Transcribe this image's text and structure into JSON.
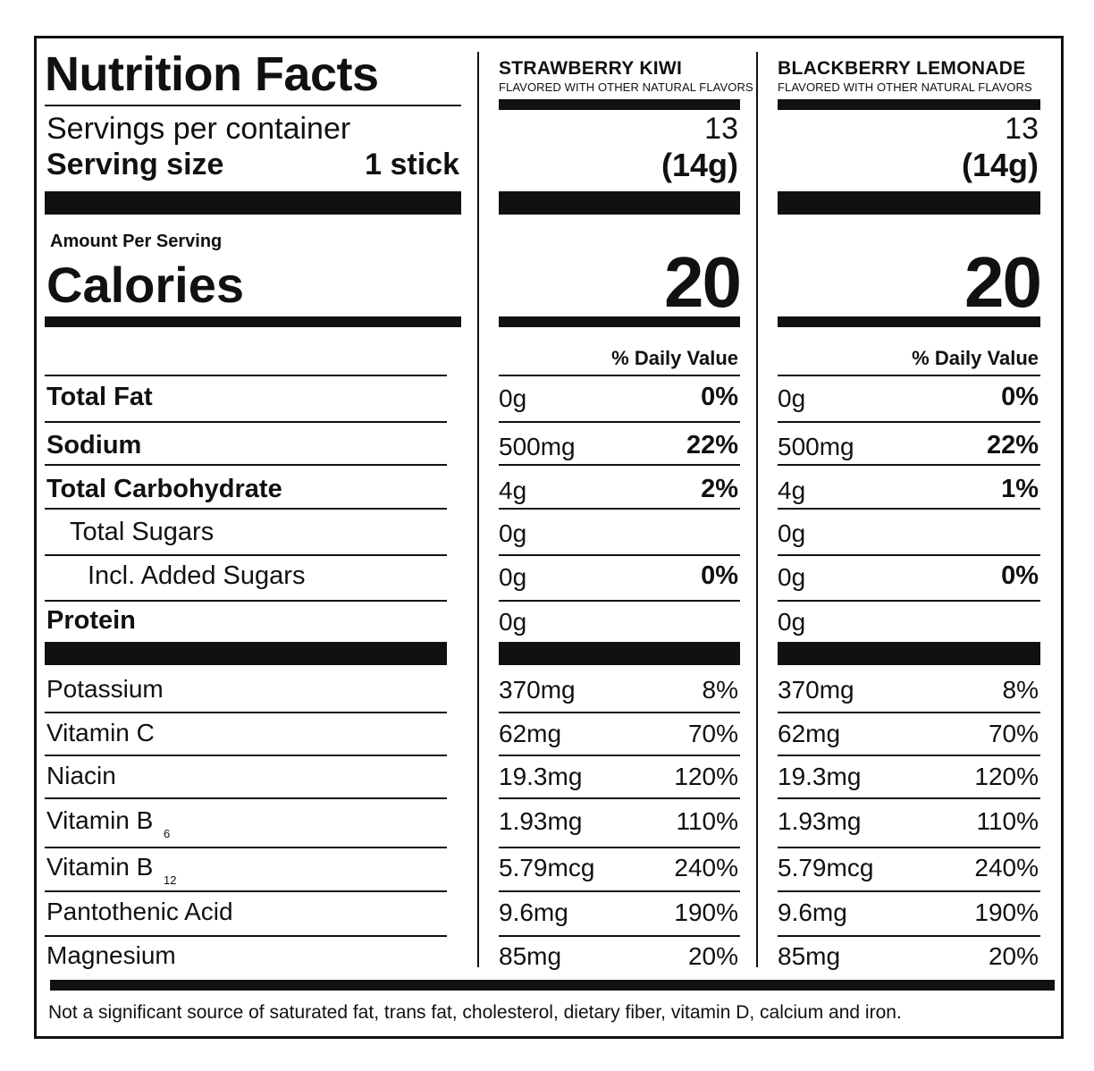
{
  "title": "Nutrition Facts",
  "servings_label": "Servings per container",
  "serving_size_label": "Serving size",
  "serving_size_value": "1 stick",
  "amount_per_serving": "Amount Per Serving",
  "calories_label": "Calories",
  "daily_value_header": "% Daily Value",
  "footnote": "Not a significant source of saturated fat, trans fat, cholesterol, dietary fiber, vitamin D, calcium and iron.",
  "products": [
    {
      "name": "STRAWBERRY KIWI",
      "subtitle": "FLAVORED WITH OTHER NATURAL FLAVORS",
      "servings": "13",
      "serving_size": "(14g)",
      "calories": "20"
    },
    {
      "name": "BLACKBERRY LEMONADE",
      "subtitle": "FLAVORED WITH OTHER NATURAL FLAVORS",
      "servings": "13",
      "serving_size": "(14g)",
      "calories": "20"
    }
  ],
  "nutrients": [
    {
      "label": "Total Fat",
      "p1_amount": "0g",
      "p1_dv": "0%",
      "p2_amount": "0g",
      "p2_dv": "0%"
    },
    {
      "label": "Sodium",
      "p1_amount": "500mg",
      "p1_dv": "22%",
      "p2_amount": "500mg",
      "p2_dv": "22%"
    },
    {
      "label": "Total Carbohydrate",
      "p1_amount": "4g",
      "p1_dv": "2%",
      "p2_amount": "4g",
      "p2_dv": "1%"
    },
    {
      "label": "Total Sugars",
      "p1_amount": "0g",
      "p1_dv": "",
      "p2_amount": "0g",
      "p2_dv": ""
    },
    {
      "label": "Incl. Added Sugars",
      "p1_amount": "0g",
      "p1_dv": "0%",
      "p2_amount": "0g",
      "p2_dv": "0%"
    },
    {
      "label": "Protein",
      "p1_amount": "0g",
      "p1_dv": "",
      "p2_amount": "0g",
      "p2_dv": ""
    }
  ],
  "vitamins": [
    {
      "label": "Potassium",
      "sub": "",
      "p1_amount": "370mg",
      "p1_dv": "8%",
      "p2_amount": "370mg",
      "p2_dv": "8%"
    },
    {
      "label": "Vitamin C",
      "sub": "",
      "p1_amount": "62mg",
      "p1_dv": "70%",
      "p2_amount": "62mg",
      "p2_dv": "70%"
    },
    {
      "label": "Niacin",
      "sub": "",
      "p1_amount": "19.3mg",
      "p1_dv": "120%",
      "p2_amount": "19.3mg",
      "p2_dv": "120%"
    },
    {
      "label": "Vitamin B",
      "sub": "6",
      "p1_amount": "1.93mg",
      "p1_dv": "110%",
      "p2_amount": "1.93mg",
      "p2_dv": "110%"
    },
    {
      "label": "Vitamin B",
      "sub": "12",
      "p1_amount": "5.79mcg",
      "p1_dv": "240%",
      "p2_amount": "5.79mcg",
      "p2_dv": "240%"
    },
    {
      "label": "Pantothenic Acid",
      "sub": "",
      "p1_amount": "9.6mg",
      "p1_dv": "190%",
      "p2_amount": "9.6mg",
      "p2_dv": "190%"
    },
    {
      "label": "Magnesium",
      "sub": "",
      "p1_amount": "85mg",
      "p1_dv": "20%",
      "p2_amount": "85mg",
      "p2_dv": "20%"
    }
  ]
}
